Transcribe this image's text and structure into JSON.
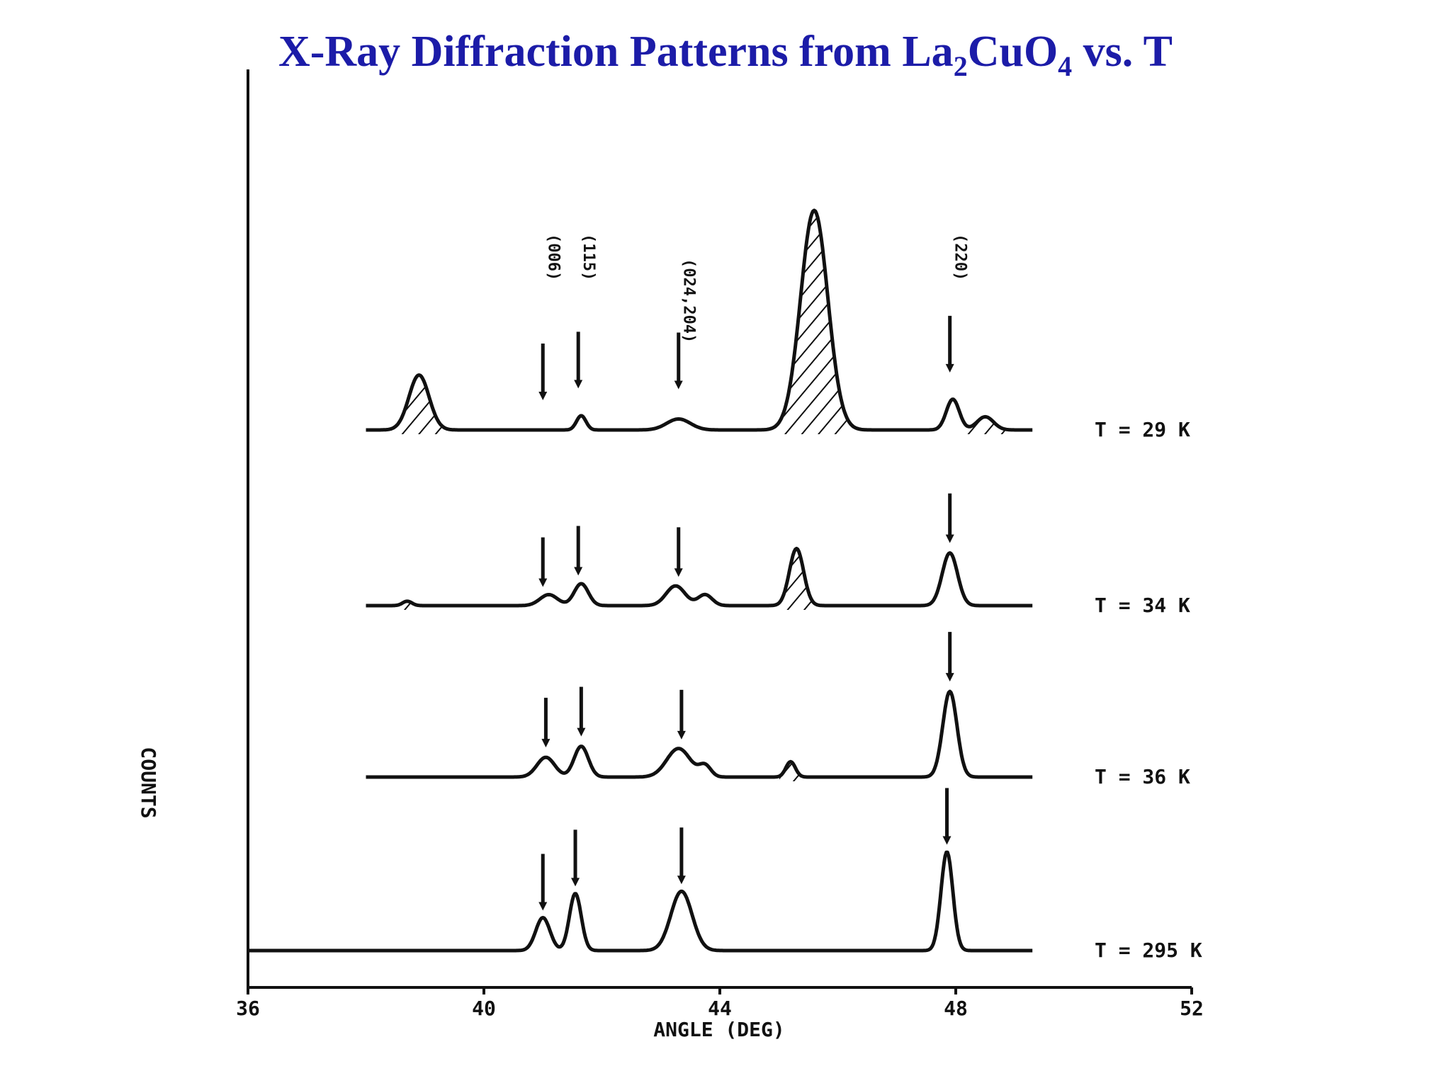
{
  "title": {
    "main": "X-Ray Diffraction Patterns from La",
    "sub1": "2",
    "mid": "CuO",
    "sub2": "4",
    "end": " vs. T"
  },
  "chart_data": {
    "type": "line",
    "xlabel": "ANGLE (DEG)",
    "ylabel": "COUNTS",
    "xlim": [
      36,
      52
    ],
    "xticks": [
      "36",
      "40",
      "44",
      "48",
      "52"
    ],
    "xtick_values": [
      36,
      40,
      44,
      48,
      52
    ],
    "grid": false,
    "legend": "none",
    "peak_labels": [
      {
        "label": "(006)",
        "x": 41.0
      },
      {
        "label": "(115)",
        "x": 41.6
      },
      {
        "label": "(024,204)",
        "x": 43.3
      },
      {
        "label": "(220)",
        "x": 47.9
      }
    ],
    "series": [
      {
        "name": "T = 295 K",
        "x_range": [
          36.0,
          49.3
        ],
        "baseline": 0.0,
        "peaks": [
          {
            "x": 41.0,
            "h": 0.3,
            "w": 0.12
          },
          {
            "x": 41.55,
            "h": 0.52,
            "w": 0.1
          },
          {
            "x": 43.35,
            "h": 0.54,
            "w": 0.18
          },
          {
            "x": 47.85,
            "h": 0.9,
            "w": 0.1
          }
        ],
        "arrows": [
          41.0,
          41.55,
          43.35,
          47.85
        ]
      },
      {
        "name": "T = 36 K",
        "x_range": [
          38.0,
          49.3
        ],
        "baseline": 0.0,
        "peaks": [
          {
            "x": 41.05,
            "h": 0.18,
            "w": 0.15
          },
          {
            "x": 41.65,
            "h": 0.28,
            "w": 0.12
          },
          {
            "x": 43.3,
            "h": 0.26,
            "w": 0.2
          },
          {
            "x": 43.75,
            "h": 0.1,
            "w": 0.1
          },
          {
            "x": 45.2,
            "h": 0.14,
            "w": 0.08
          },
          {
            "x": 47.9,
            "h": 0.78,
            "w": 0.12
          }
        ],
        "arrows": [
          41.05,
          41.65,
          43.35,
          47.9
        ],
        "hatched_peaks": [
          45.2
        ]
      },
      {
        "name": "T = 34 K",
        "x_range": [
          38.0,
          49.3
        ],
        "baseline": 0.0,
        "peaks": [
          {
            "x": 38.7,
            "h": 0.04,
            "w": 0.08
          },
          {
            "x": 41.1,
            "h": 0.1,
            "w": 0.15
          },
          {
            "x": 41.65,
            "h": 0.2,
            "w": 0.12
          },
          {
            "x": 43.25,
            "h": 0.18,
            "w": 0.16
          },
          {
            "x": 43.75,
            "h": 0.1,
            "w": 0.12
          },
          {
            "x": 45.3,
            "h": 0.52,
            "w": 0.12
          },
          {
            "x": 47.9,
            "h": 0.48,
            "w": 0.13
          }
        ],
        "arrows": [
          41.0,
          41.6,
          43.3,
          47.9
        ],
        "hatched_peaks": [
          38.7,
          45.3
        ]
      },
      {
        "name": "T = 29 K",
        "x_range": [
          38.0,
          49.3
        ],
        "baseline": 0.0,
        "peaks": [
          {
            "x": 38.9,
            "h": 0.5,
            "w": 0.17
          },
          {
            "x": 41.65,
            "h": 0.13,
            "w": 0.08
          },
          {
            "x": 43.3,
            "h": 0.1,
            "w": 0.2
          },
          {
            "x": 45.6,
            "h": 2.0,
            "w": 0.23
          },
          {
            "x": 47.95,
            "h": 0.28,
            "w": 0.11
          },
          {
            "x": 48.5,
            "h": 0.12,
            "w": 0.14
          }
        ],
        "arrows": [
          41.0,
          41.6,
          43.3,
          47.9
        ],
        "hatched_peaks": [
          38.9,
          45.6,
          48.5
        ]
      }
    ]
  }
}
